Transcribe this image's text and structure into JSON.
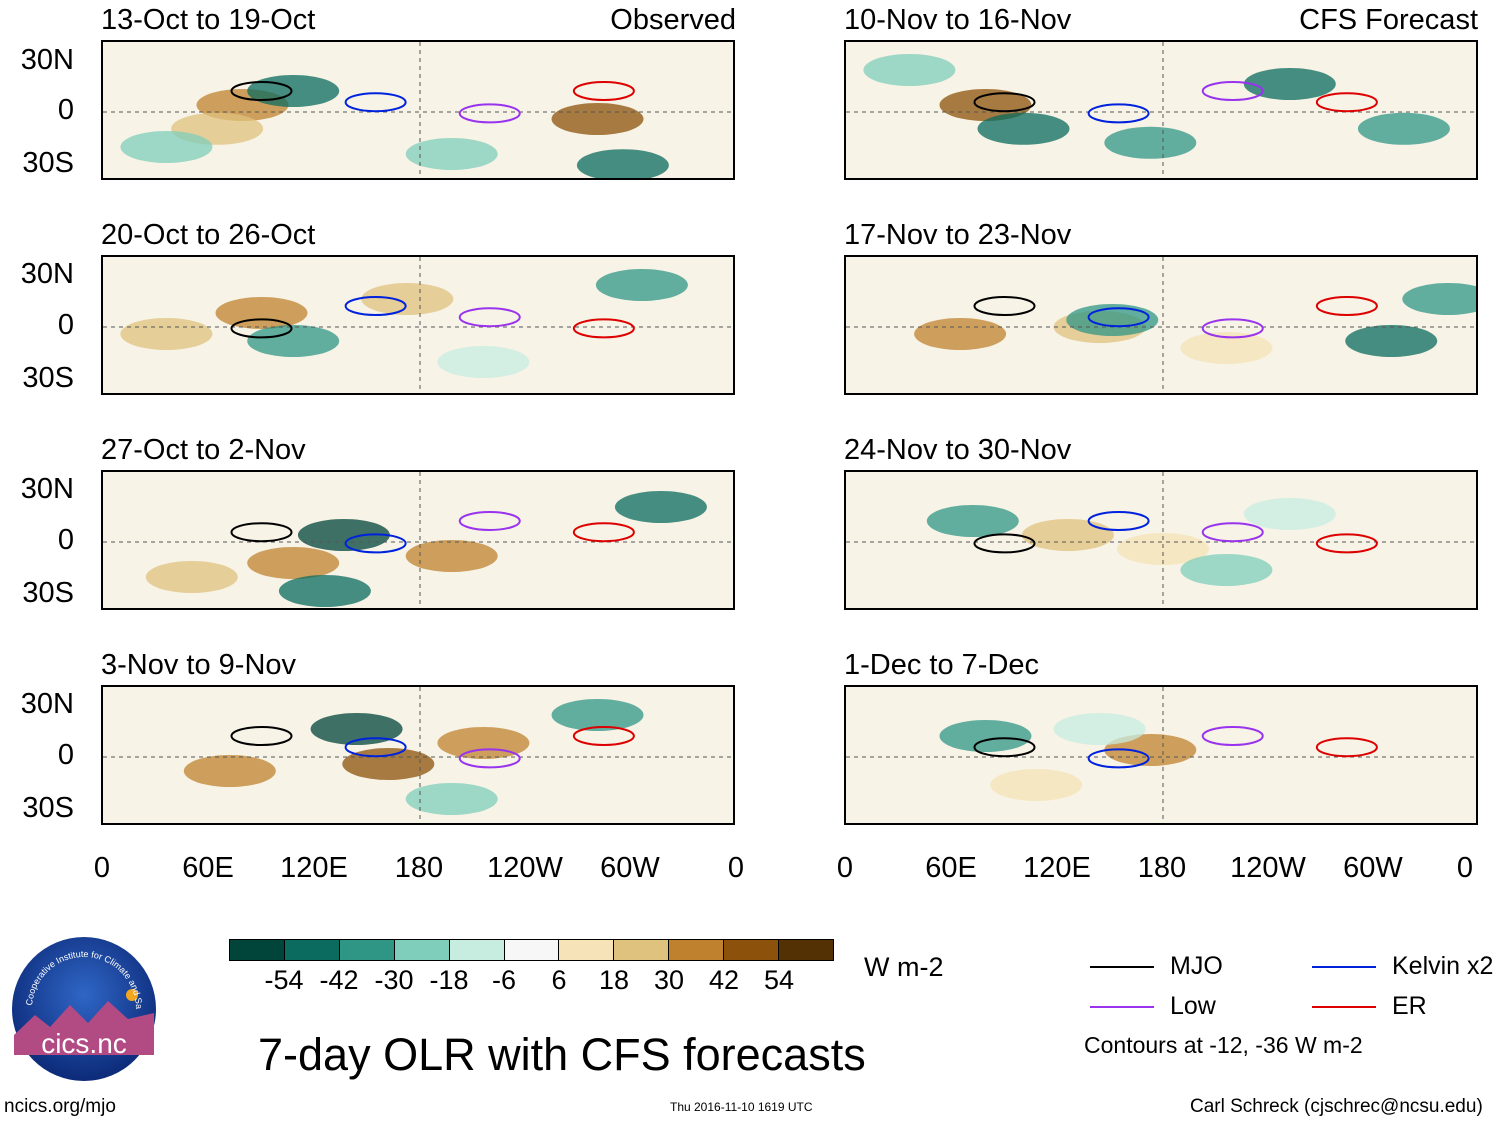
{
  "panels": [
    {
      "title": "13-Oct to 19-Oct",
      "tag": "Observed"
    },
    {
      "title": "10-Nov to 16-Nov",
      "tag": "CFS Forecast"
    },
    {
      "title": "20-Oct to 26-Oct",
      "tag": ""
    },
    {
      "title": "17-Nov to 23-Nov",
      "tag": ""
    },
    {
      "title": "27-Oct to 2-Nov",
      "tag": ""
    },
    {
      "title": "24-Nov to 30-Nov",
      "tag": ""
    },
    {
      "title": "3-Nov to 9-Nov",
      "tag": ""
    },
    {
      "title": "1-Dec to 7-Dec",
      "tag": ""
    }
  ],
  "lat_labels": [
    "30N",
    "0",
    "30S"
  ],
  "lon_labels": [
    "0",
    "60E",
    "120E",
    "180",
    "120W",
    "60W",
    "0"
  ],
  "colorbar": {
    "ticks": [
      "-54",
      "-42",
      "-30",
      "-18",
      "-6",
      "6",
      "18",
      "30",
      "42",
      "54"
    ],
    "colors": [
      "#00443a",
      "#0a6b5e",
      "#2f9585",
      "#7fcdbb",
      "#c7ece0",
      "#f7f7f7",
      "#f6e3b7",
      "#dfc27d",
      "#bf812d",
      "#8c510a",
      "#543005"
    ],
    "units": "W m-2"
  },
  "title": "7-day OLR with CFS forecasts",
  "legend": {
    "items": [
      {
        "label": "MJO",
        "color": "#000000"
      },
      {
        "label": "Kelvin x2",
        "color": "#0022dd"
      },
      {
        "label": "Low",
        "color": "#9933ee"
      },
      {
        "label": "ER",
        "color": "#dd0000"
      }
    ],
    "contours_note": "Contours at -12, -36 W m-2"
  },
  "logo_text": "cics.nc",
  "logo_ring_text": "Cooperative Institute for Climate and Satellites",
  "footer": {
    "left": "ncics.org/mjo",
    "center": "Thu 2016-11-10 1619 UTC",
    "right": "Carl Schreck (cjschrec@ncsu.edu)"
  }
}
